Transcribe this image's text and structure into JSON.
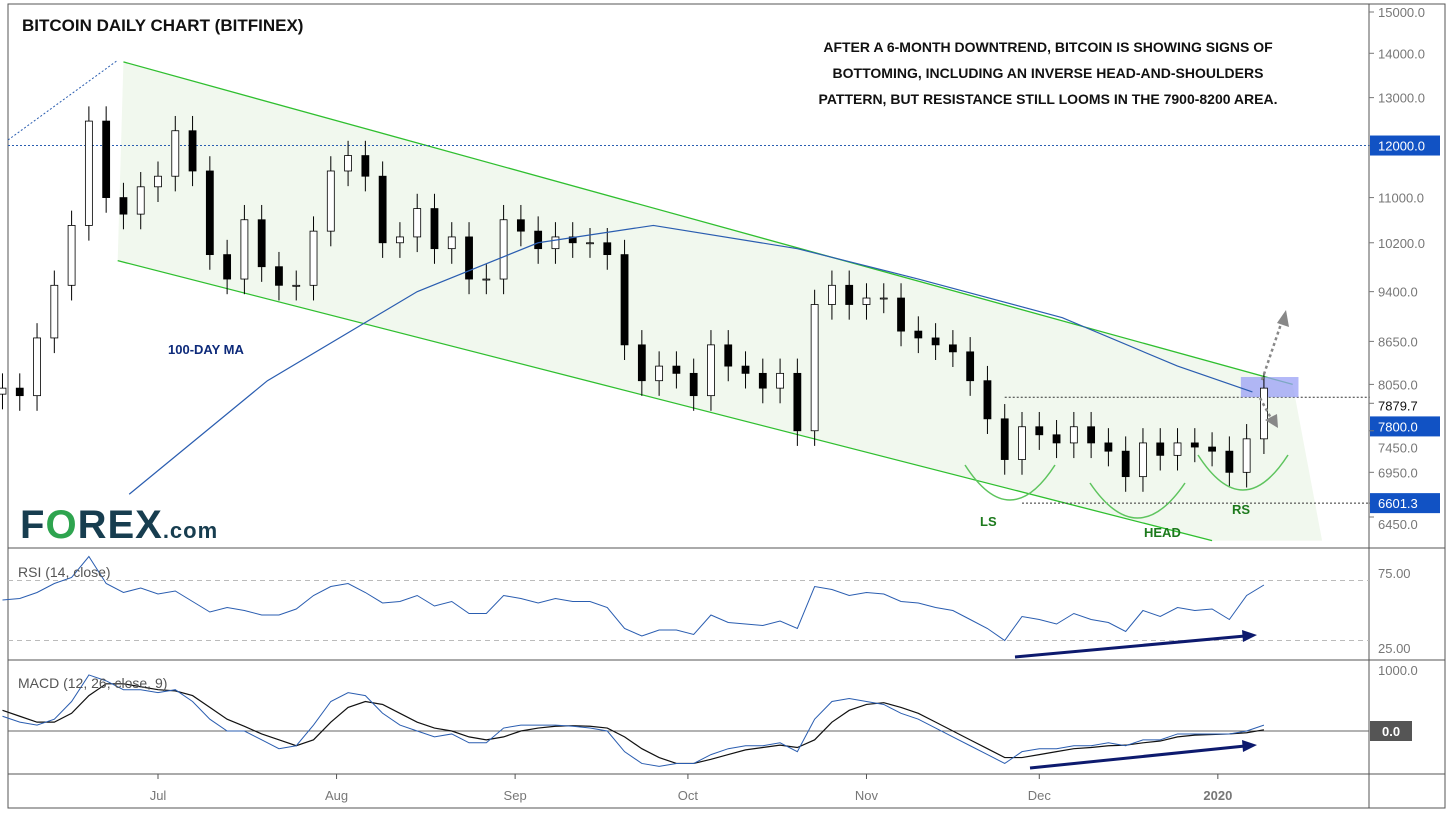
{
  "chart_data": {
    "type": "candlestick",
    "title": "BITCOIN DAILY CHART (BITFINEX)",
    "annotation": [
      "AFTER A 6-MONTH DOWNTREND, BITCOIN IS SHOWING SIGNS OF",
      "BOTTOMING, INCLUDING AN INVERSE HEAD-AND-SHOULDERS",
      "PATTERN, BUT RESISTANCE STILL LOOMS IN THE 7900-8200 AREA."
    ],
    "ma_label": "100-DAY MA",
    "pattern_labels": {
      "ls": "LS",
      "head": "HEAD",
      "rs": "RS"
    },
    "logo": "FOREX.com",
    "price_ticks": [
      "15000.0",
      "14000.0",
      "13000.0",
      "11000.0",
      "10200.0",
      "9400.0",
      "8650.0",
      "8050.0",
      "7450.0",
      "6950.0",
      "6450.0"
    ],
    "price_markers": [
      {
        "label": "12000.0",
        "value": 12000,
        "style": "badge"
      },
      {
        "label": "7879.7",
        "value": 7879.7,
        "style": "plain"
      },
      {
        "label": "7800.0",
        "value": 7800,
        "style": "badge"
      },
      {
        "label": "6601.3",
        "value": 6601.3,
        "style": "badge"
      }
    ],
    "x_ticks": [
      {
        "label": "Jul",
        "date": "2019-07-01"
      },
      {
        "label": "Aug",
        "date": "2019-08-01"
      },
      {
        "label": "Sep",
        "date": "2019-09-01"
      },
      {
        "label": "Oct",
        "date": "2019-10-01"
      },
      {
        "label": "Nov",
        "date": "2019-11-01"
      },
      {
        "label": "Dec",
        "date": "2019-12-01"
      },
      {
        "label": "2020",
        "date": "2020-01-01"
      }
    ],
    "start_date": "2019-06-04",
    "step_days": 3,
    "closes": [
      8000,
      7900,
      8700,
      9500,
      10500,
      12500,
      11000,
      10700,
      11200,
      11400,
      12300,
      11500,
      10000,
      9600,
      10600,
      9800,
      9500,
      9500,
      10400,
      11500,
      11800,
      11400,
      10200,
      10300,
      10800,
      10100,
      10300,
      9600,
      9600,
      10600,
      10400,
      10100,
      10300,
      10200,
      10200,
      10000,
      8600,
      8100,
      8300,
      8200,
      7900,
      8600,
      8300,
      8200,
      8000,
      8200,
      7450,
      9200,
      9500,
      9200,
      9300,
      9300,
      8800,
      8700,
      8600,
      8500,
      8100,
      7600,
      7100,
      7500,
      7400,
      7300,
      7500,
      7300,
      7200,
      6900,
      7300,
      7150,
      7300,
      7250,
      7200,
      6950,
      7350,
      8000
    ],
    "ma100": {
      "dates": [
        "2019-06-26",
        "2019-07-20",
        "2019-08-15",
        "2019-09-05",
        "2019-09-25",
        "2019-10-20",
        "2019-11-10",
        "2019-12-05",
        "2019-12-25",
        "2020-01-07"
      ],
      "values": [
        6700,
        8100,
        9400,
        10200,
        10500,
        10100,
        9600,
        9000,
        8300,
        7950
      ]
    },
    "channel": {
      "upper": [
        {
          "date": "2019-06-25",
          "value": 13800
        },
        {
          "date": "2020-01-14",
          "value": 8050
        }
      ],
      "lower": [
        {
          "date": "2019-06-24",
          "value": 9900
        },
        {
          "date": "2019-12-31",
          "value": 6200
        }
      ]
    },
    "levels": [
      {
        "value": 12000
      },
      {
        "value": 7879.7,
        "from": "2019-11-25"
      },
      {
        "value": 6601.3,
        "from": "2019-11-28"
      }
    ],
    "resistance_zone": {
      "from": "2020-01-05",
      "to": "2020-01-15",
      "low": 7880,
      "high": 8150
    },
    "rsi": {
      "label": "RSI (14, close)",
      "ticks": [
        "75.00",
        "25.00"
      ],
      "levels": [
        70,
        30
      ],
      "values": [
        57,
        58,
        62,
        68,
        72,
        86,
        68,
        62,
        65,
        61,
        63,
        56,
        49,
        52,
        50,
        47,
        47,
        51,
        60,
        66,
        68,
        62,
        55,
        56,
        60,
        53,
        56,
        48,
        48,
        60,
        58,
        55,
        58,
        56,
        56,
        52,
        38,
        33,
        37,
        37,
        34,
        47,
        42,
        41,
        40,
        43,
        38,
        66,
        64,
        60,
        62,
        61,
        56,
        55,
        52,
        50,
        44,
        38,
        30,
        46,
        44,
        41,
        48,
        44,
        42,
        36,
        50,
        46,
        52,
        50,
        51,
        44,
        60,
        67
      ]
    },
    "macd": {
      "label": "MACD (12, 26, close, 9)",
      "ticks": [
        "1000.0"
      ],
      "zero_label": "0.0",
      "macd": [
        250,
        150,
        100,
        200,
        500,
        950,
        850,
        700,
        700,
        650,
        700,
        500,
        200,
        0,
        0,
        -150,
        -300,
        -250,
        100,
        500,
        650,
        600,
        300,
        100,
        0,
        -100,
        -50,
        -200,
        -200,
        50,
        100,
        100,
        100,
        80,
        50,
        0,
        -350,
        -550,
        -600,
        -550,
        -550,
        -400,
        -300,
        -250,
        -250,
        -200,
        -350,
        200,
        500,
        550,
        500,
        450,
        300,
        200,
        50,
        -100,
        -250,
        -400,
        -550,
        -350,
        -300,
        -300,
        -250,
        -250,
        -200,
        -250,
        -150,
        -150,
        -50,
        -50,
        -50,
        -50,
        0,
        100
      ],
      "signal": [
        350,
        250,
        150,
        150,
        300,
        600,
        800,
        800,
        750,
        700,
        680,
        600,
        400,
        200,
        80,
        -50,
        -150,
        -250,
        -150,
        150,
        400,
        500,
        450,
        300,
        150,
        50,
        0,
        -100,
        -150,
        -100,
        0,
        50,
        80,
        90,
        80,
        50,
        -100,
        -300,
        -450,
        -550,
        -550,
        -480,
        -400,
        -320,
        -280,
        -240,
        -280,
        -150,
        150,
        350,
        450,
        480,
        400,
        300,
        150,
        0,
        -150,
        -300,
        -450,
        -450,
        -400,
        -350,
        -300,
        -280,
        -250,
        -240,
        -200,
        -170,
        -100,
        -70,
        -60,
        -50,
        -30,
        20
      ]
    }
  },
  "colors": {
    "up": "#ffffff",
    "down": "#000000",
    "ma": "#2a5db0",
    "channel": "#2fbf2f",
    "badge": "#1152c4",
    "rsi": "#2a5db0",
    "arrow": "#0d1a6e"
  }
}
